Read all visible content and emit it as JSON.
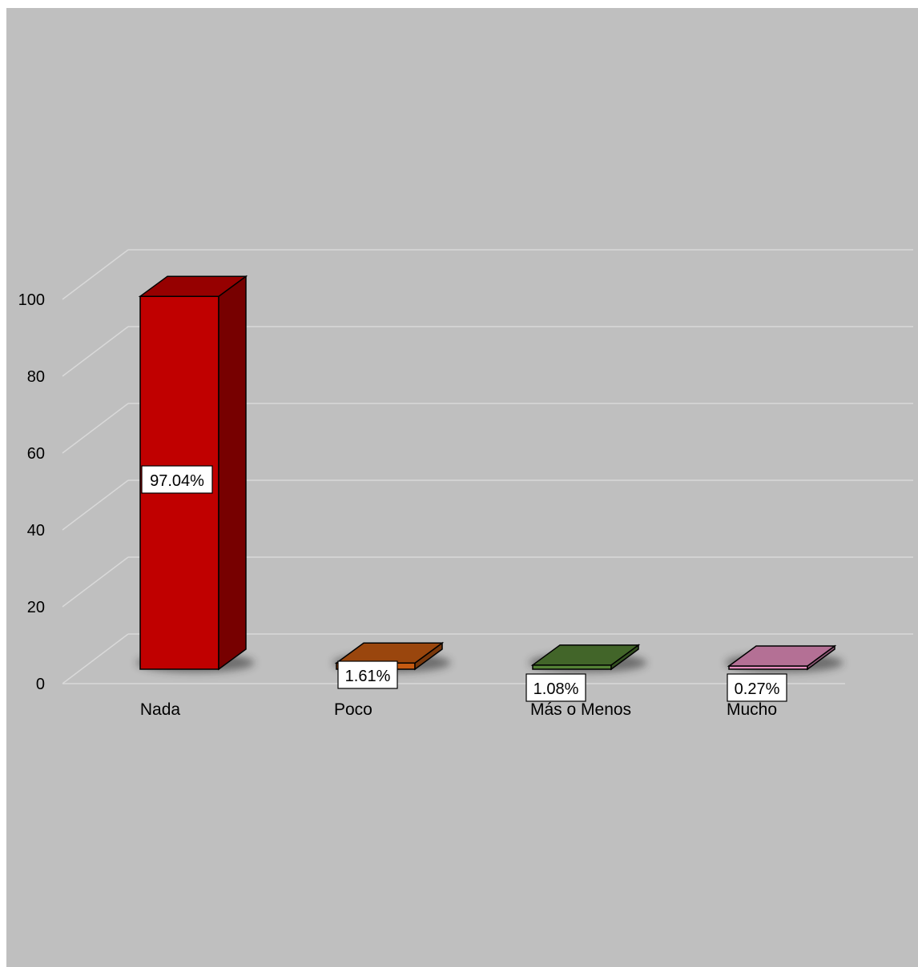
{
  "chart_data": {
    "type": "bar",
    "categories": [
      "Nada",
      "Poco",
      "Más o Menos",
      "Mucho"
    ],
    "values": [
      97.04,
      1.61,
      1.08,
      0.27
    ],
    "data_labels": [
      "97.04%",
      "1.61%",
      "1.08%",
      "0.27%"
    ],
    "colors": [
      "#c00000",
      "#c55a11",
      "#548235",
      "#e78fbf"
    ],
    "yticks": [
      "0",
      "20",
      "40",
      "60",
      "80",
      "100"
    ],
    "ylim": [
      0,
      100
    ],
    "title": "",
    "xlabel": "",
    "ylabel": "",
    "grid": true,
    "style": "3d-column",
    "background": "#bfbfbf"
  }
}
